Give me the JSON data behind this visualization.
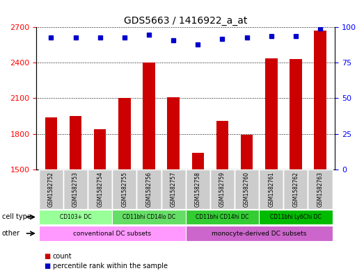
{
  "title": "GDS5663 / 1416922_a_at",
  "samples": [
    "GSM1582752",
    "GSM1582753",
    "GSM1582754",
    "GSM1582755",
    "GSM1582756",
    "GSM1582757",
    "GSM1582758",
    "GSM1582759",
    "GSM1582760",
    "GSM1582761",
    "GSM1582762",
    "GSM1582763"
  ],
  "counts": [
    1940,
    1950,
    1840,
    2100,
    2400,
    2110,
    1640,
    1910,
    1790,
    2440,
    2430,
    2670
  ],
  "percentiles": [
    93,
    93,
    93,
    93,
    95,
    91,
    88,
    92,
    93,
    94,
    94,
    99
  ],
  "ylim_left": [
    1500,
    2700
  ],
  "ylim_right": [
    0,
    100
  ],
  "yticks_left": [
    1500,
    1800,
    2100,
    2400,
    2700
  ],
  "yticks_right": [
    0,
    25,
    50,
    75,
    100
  ],
  "bar_color": "#cc0000",
  "dot_color": "#0000cc",
  "cell_type_groups": [
    {
      "label": "CD103+ DC",
      "start": 0,
      "end": 3,
      "color": "#99ff99"
    },
    {
      "label": "CD11bhi CD14lo DC",
      "start": 3,
      "end": 6,
      "color": "#66dd66"
    },
    {
      "label": "CD11bhi CD14hi DC",
      "start": 6,
      "end": 9,
      "color": "#33cc33"
    },
    {
      "label": "CD11bhi Ly6Chi DC",
      "start": 9,
      "end": 12,
      "color": "#00bb00"
    }
  ],
  "other_groups": [
    {
      "label": "conventional DC subsets",
      "start": 0,
      "end": 6,
      "color": "#ff99ff"
    },
    {
      "label": "monocyte-derived DC subsets",
      "start": 6,
      "end": 12,
      "color": "#cc66cc"
    }
  ],
  "row_labels": [
    "cell type",
    "other"
  ],
  "xticklabel_color": "#333333",
  "sample_bg_color": "#cccccc"
}
